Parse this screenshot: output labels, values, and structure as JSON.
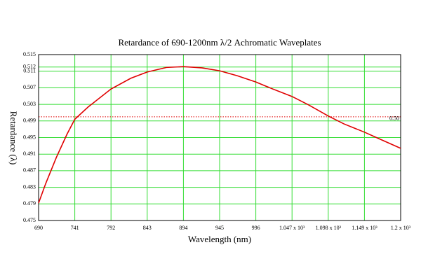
{
  "chart_data": {
    "type": "line",
    "title": "Retardance of 690-1200nm  λ/2 Achromatic Waveplates",
    "x_label": "Wavelength (nm)",
    "y_label": "Retardance (λ)",
    "x": [
      690,
      700,
      715,
      730,
      741,
      760,
      792,
      820,
      843,
      870,
      894,
      920,
      945,
      970,
      996,
      1020,
      1047,
      1070,
      1098,
      1120,
      1149,
      1175,
      1200
    ],
    "series": [
      {
        "color": "#e00000",
        "values": [
          0.4792,
          0.4839,
          0.4902,
          0.4958,
          0.4994,
          0.5024,
          0.5067,
          0.5093,
          0.5108,
          0.5119,
          0.5121,
          0.5118,
          0.5111,
          0.5099,
          0.5084,
          0.5067,
          0.5049,
          0.5029,
          0.5002,
          0.4983,
          0.4963,
          0.4943,
          0.4924
        ]
      }
    ],
    "xlim": [
      690,
      1200
    ],
    "xticks": [
      690,
      741,
      792,
      843,
      894,
      945,
      996,
      {
        "value": 1047,
        "label": "1.047 x 10³"
      },
      {
        "value": 1098,
        "label": "1.098 x 10³"
      },
      {
        "value": 1149,
        "label": "1.149 x 10³"
      },
      {
        "value": 1200,
        "label": "1.2 x 10³"
      }
    ],
    "ylim": [
      0.475,
      0.515
    ],
    "yticks": [
      0.475,
      0.479,
      0.483,
      0.487,
      0.491,
      0.495,
      0.499,
      0.503,
      0.507,
      0.511,
      0.512,
      0.515
    ],
    "reference_line": {
      "value": 0.5,
      "label": "0.50",
      "color": "#e00000"
    },
    "grid": true,
    "grid_color": "#33dd33"
  }
}
